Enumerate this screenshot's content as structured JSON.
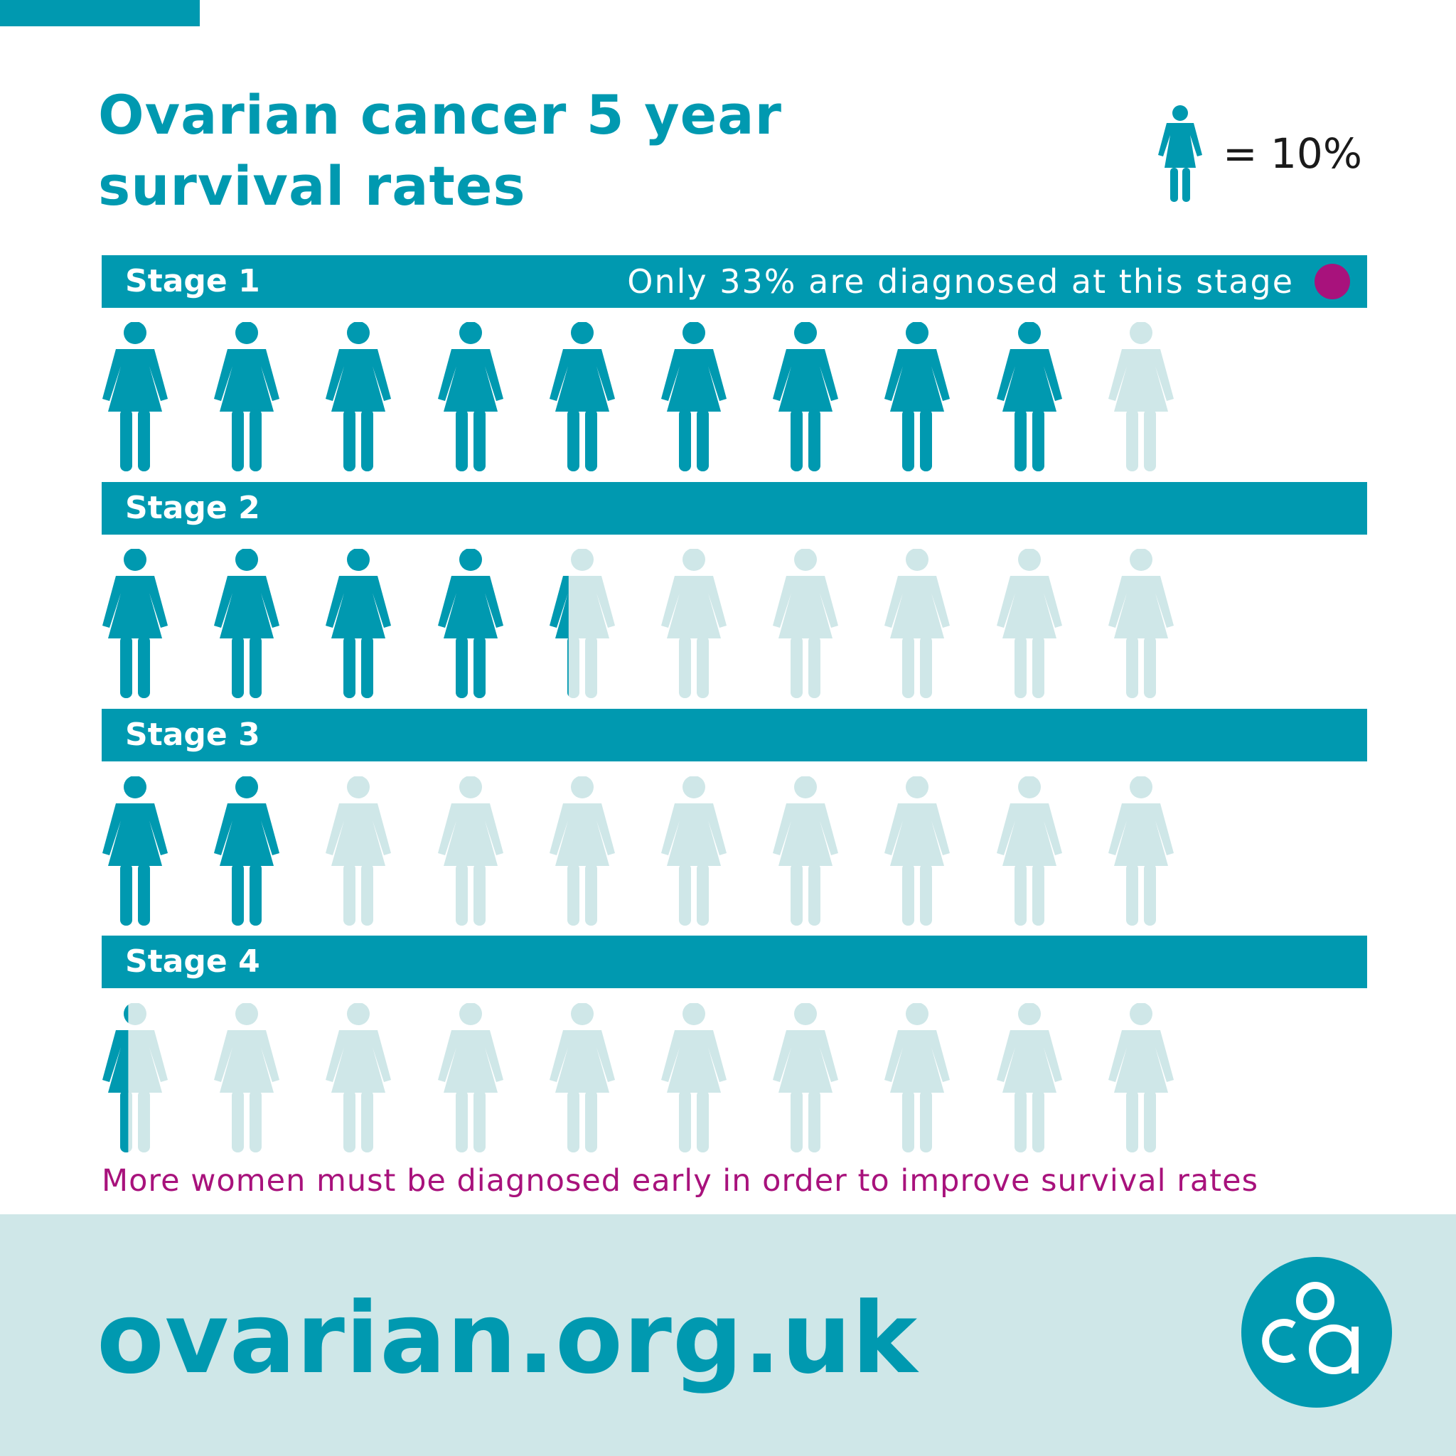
{
  "title_line1": "Ovarian cancer 5 year",
  "title_line2": "survival rates",
  "legend": {
    "label": "= 10%",
    "icon": "woman-figure-icon"
  },
  "colors": {
    "teal": "#0099b0",
    "light_teal": "#cfe7e8",
    "magenta": "#a8127c"
  },
  "chart_data": {
    "type": "pictogram",
    "unit_value_percent": 10,
    "figures_per_row": 10,
    "categories": [
      "Stage 1",
      "Stage 2",
      "Stage 3",
      "Stage 4"
    ],
    "values": [
      90,
      43,
      20,
      4
    ]
  },
  "stages": [
    {
      "label": "Stage 1",
      "note": "Only 33% are diagnosed at this stage"
    },
    {
      "label": "Stage 2",
      "note": ""
    },
    {
      "label": "Stage 3",
      "note": ""
    },
    {
      "label": "Stage 4",
      "note": ""
    }
  ],
  "bottom_note": "More women must be diagnosed early in order to improve survival rates",
  "footer": {
    "url": "ovarian.org.uk",
    "logo": "oca-logo"
  }
}
